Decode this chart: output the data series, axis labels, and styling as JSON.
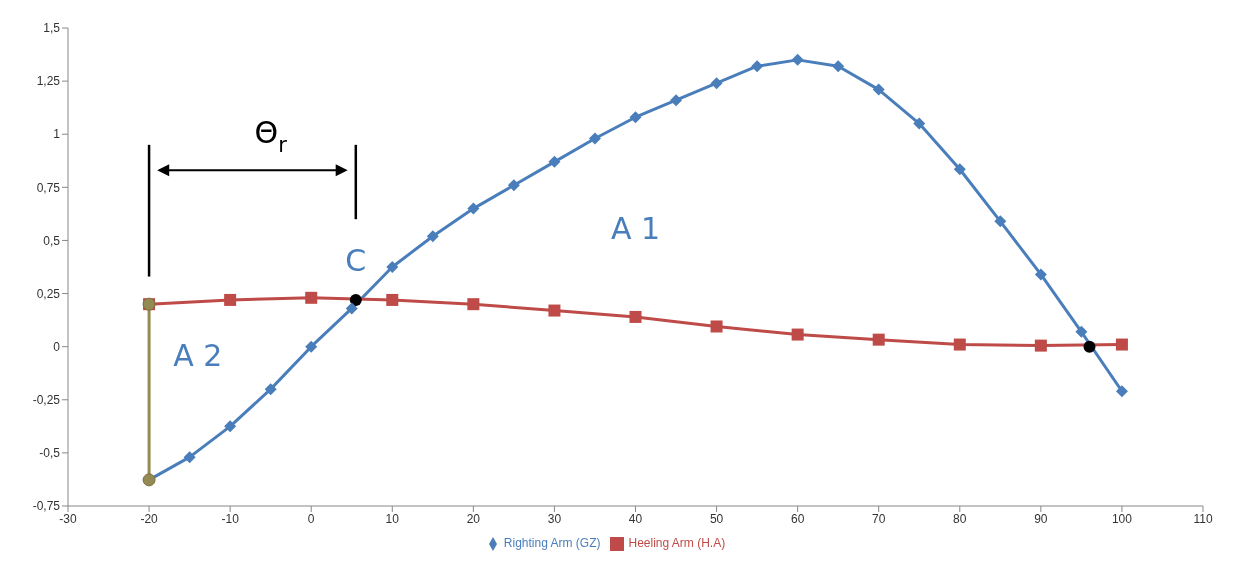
{
  "chart_data": {
    "type": "line",
    "xlim": [
      -30,
      110
    ],
    "xticks": [
      -30,
      -20,
      -10,
      0,
      10,
      20,
      30,
      40,
      50,
      60,
      70,
      80,
      90,
      100,
      110
    ],
    "ylim": [
      -0.75,
      1.5
    ],
    "yticks": [
      {
        "value": -0.75,
        "label": "-0,75"
      },
      {
        "value": -0.5,
        "label": "-0,5"
      },
      {
        "value": -0.25,
        "label": "-0,25"
      },
      0,
      {
        "value": 0.25,
        "label": "0,25"
      },
      {
        "value": 0.5,
        "label": "0,5"
      },
      {
        "value": 0.75,
        "label": "0,75"
      },
      1,
      {
        "value": 1.25,
        "label": "1,25"
      },
      {
        "value": 1.5,
        "label": "1,5"
      }
    ],
    "legend": "bottom",
    "series": [
      {
        "name": "Righting Arm (GZ)",
        "color": "#4a7ebb",
        "marker": "diamond",
        "x": [
          -20,
          -15,
          -10,
          -5,
          0,
          5,
          10,
          15,
          20,
          25,
          30,
          35,
          40,
          45,
          50,
          55,
          60,
          65,
          70,
          75,
          80,
          85,
          90,
          95,
          100
        ],
        "values": [
          -0.627,
          -0.52,
          -0.375,
          -0.2,
          0,
          0.18,
          0.375,
          0.52,
          0.65,
          0.76,
          0.87,
          0.98,
          1.08,
          1.16,
          1.24,
          1.32,
          1.35,
          1.32,
          1.21,
          1.05,
          0.835,
          0.59,
          0.34,
          0.07,
          -0.21
        ]
      },
      {
        "name": "Heeling Arm (H.A)",
        "color": "#be4b48",
        "marker": "square",
        "x": [
          -20,
          -10,
          0,
          10,
          20,
          30,
          40,
          50,
          60,
          70,
          80,
          90,
          100
        ],
        "values": [
          0.2,
          0.22,
          0.23,
          0.22,
          0.2,
          0.17,
          0.14,
          0.095,
          0.057,
          0.033,
          0.01,
          0.005,
          0.01
        ]
      },
      {
        "color": "#948a54",
        "marker": "circle",
        "x": [
          -20,
          -20
        ],
        "values": [
          0.2,
          -0.627
        ]
      },
      {
        "type": "scatter",
        "color": "#000000",
        "marker": "circle",
        "x": [
          5.5,
          96
        ],
        "values": [
          0.22,
          0
        ]
      }
    ],
    "annotations": [
      "A 1",
      "A 2",
      "C",
      "Θ$_{r}$"
    ]
  }
}
